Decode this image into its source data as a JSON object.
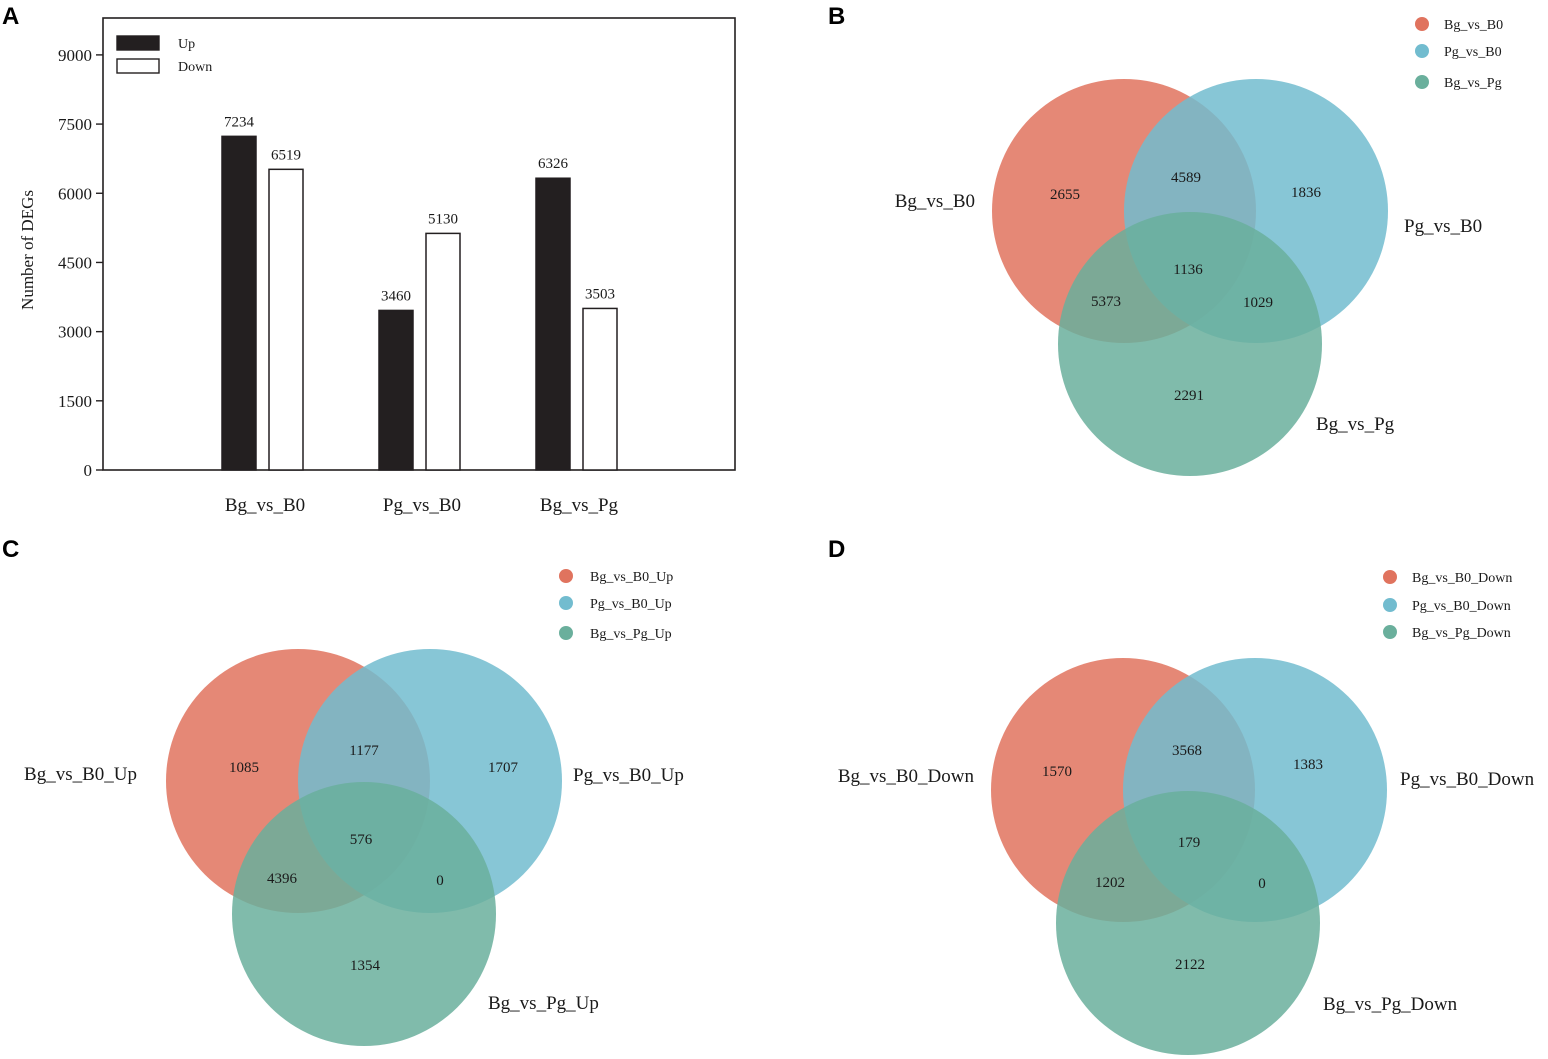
{
  "chart_data": [
    {
      "panel": "A",
      "type": "bar",
      "categories": [
        "Bg_vs_B0",
        "Pg_vs_B0",
        "Bg_vs_Pg"
      ],
      "series": [
        {
          "name": "Up",
          "values": [
            7234,
            3460,
            6326
          ],
          "color": "#231f20"
        },
        {
          "name": "Down",
          "values": [
            6519,
            5130,
            3503
          ],
          "color": "#ffffff"
        }
      ],
      "ylabel": "Number of DEGs",
      "xlabel": "",
      "yticks": [
        0,
        1500,
        3000,
        4500,
        6000,
        7500,
        9000
      ],
      "ylim": [
        0,
        9800
      ],
      "legend_position": "top-left",
      "grid": false
    },
    {
      "panel": "B",
      "type": "venn",
      "sets": [
        {
          "name": "Bg_vs_B0",
          "color": "#e0735e"
        },
        {
          "name": "Pg_vs_B0",
          "color": "#72bccf"
        },
        {
          "name": "Bg_vs_Pg",
          "color": "#6aaf9c"
        }
      ],
      "regions": {
        "A_only": "2655",
        "B_only": "1836",
        "C_only": "2291",
        "AB": "4589",
        "AC": "5373",
        "BC": "1029",
        "ABC": "1136"
      },
      "legend_position": "top-right"
    },
    {
      "panel": "C",
      "type": "venn",
      "sets": [
        {
          "name": "Bg_vs_B0_Up",
          "color": "#e0735e"
        },
        {
          "name": "Pg_vs_B0_Up",
          "color": "#72bccf"
        },
        {
          "name": "Bg_vs_Pg_Up",
          "color": "#6aaf9c"
        }
      ],
      "regions": {
        "A_only": "1085",
        "B_only": "1707",
        "C_only": "1354",
        "AB": "1177",
        "AC": "4396",
        "BC": "0",
        "ABC": "576"
      },
      "legend_position": "top-right"
    },
    {
      "panel": "D",
      "type": "venn",
      "sets": [
        {
          "name": "Bg_vs_B0_Down",
          "color": "#e0735e"
        },
        {
          "name": "Pg_vs_B0_Down",
          "color": "#72bccf"
        },
        {
          "name": "Bg_vs_Pg_Down",
          "color": "#6aaf9c"
        }
      ],
      "regions": {
        "A_only": "1570",
        "B_only": "1383",
        "C_only": "2122",
        "AB": "3568",
        "AC": "1202",
        "BC": "0",
        "ABC": "179"
      },
      "legend_position": "top-right"
    }
  ]
}
